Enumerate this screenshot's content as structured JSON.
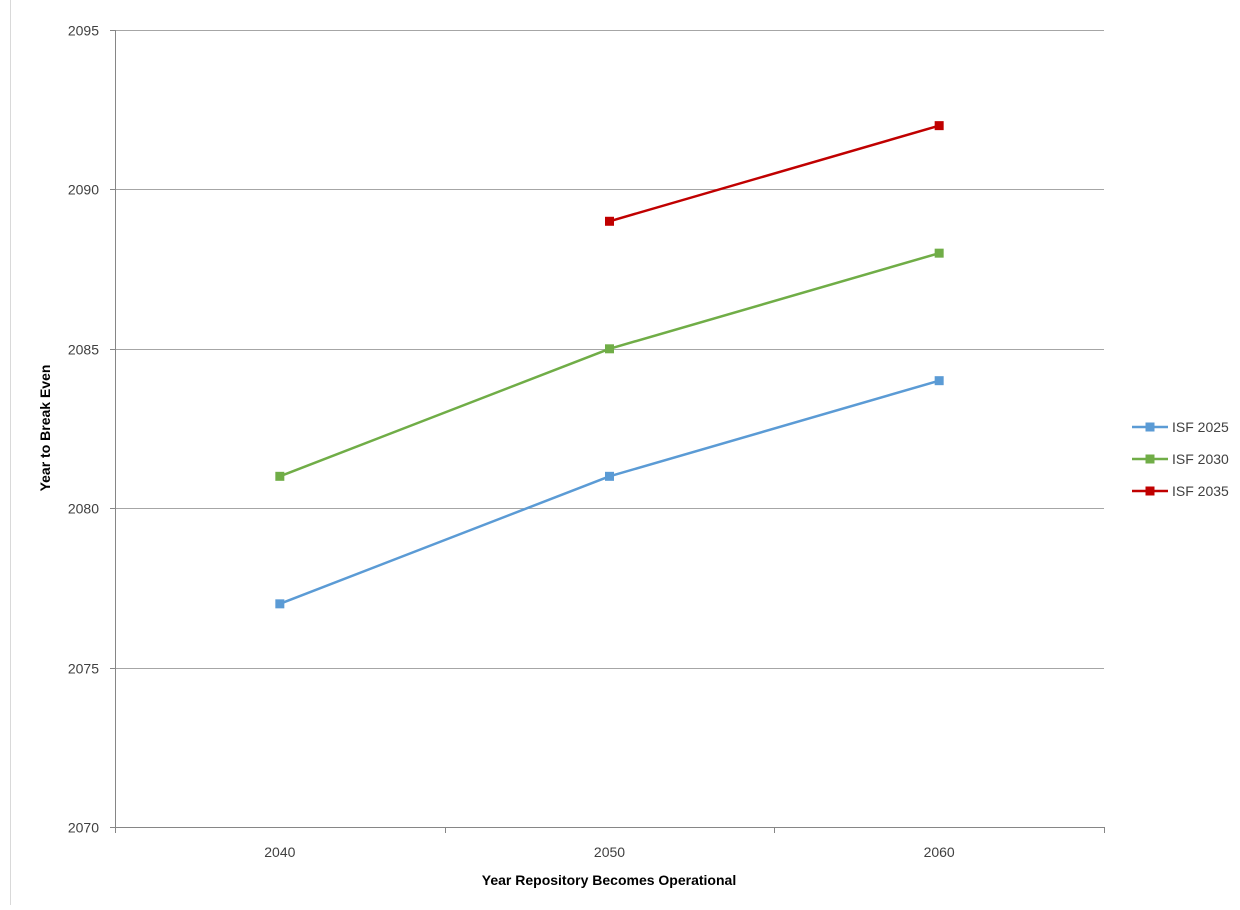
{
  "chart_data": {
    "type": "line",
    "title": "",
    "xlabel": "Year Repository Becomes Operational",
    "ylabel": "Year to Break Even",
    "categories": [
      "2040",
      "2050",
      "2060"
    ],
    "ylim": [
      2070,
      2095
    ],
    "yticks": [
      "2070",
      "2075",
      "2080",
      "2085",
      "2090",
      "2095"
    ],
    "grid": true,
    "legend_position": "right",
    "series": [
      {
        "name": "ISF 2025",
        "color": "#5B9BD5",
        "values": [
          2077,
          2081,
          2084
        ]
      },
      {
        "name": "ISF 2030",
        "color": "#70AD47",
        "values": [
          2081,
          2085,
          2088
        ]
      },
      {
        "name": "ISF 2035",
        "color": "#C00000",
        "values": [
          null,
          2089,
          2092
        ]
      }
    ]
  }
}
